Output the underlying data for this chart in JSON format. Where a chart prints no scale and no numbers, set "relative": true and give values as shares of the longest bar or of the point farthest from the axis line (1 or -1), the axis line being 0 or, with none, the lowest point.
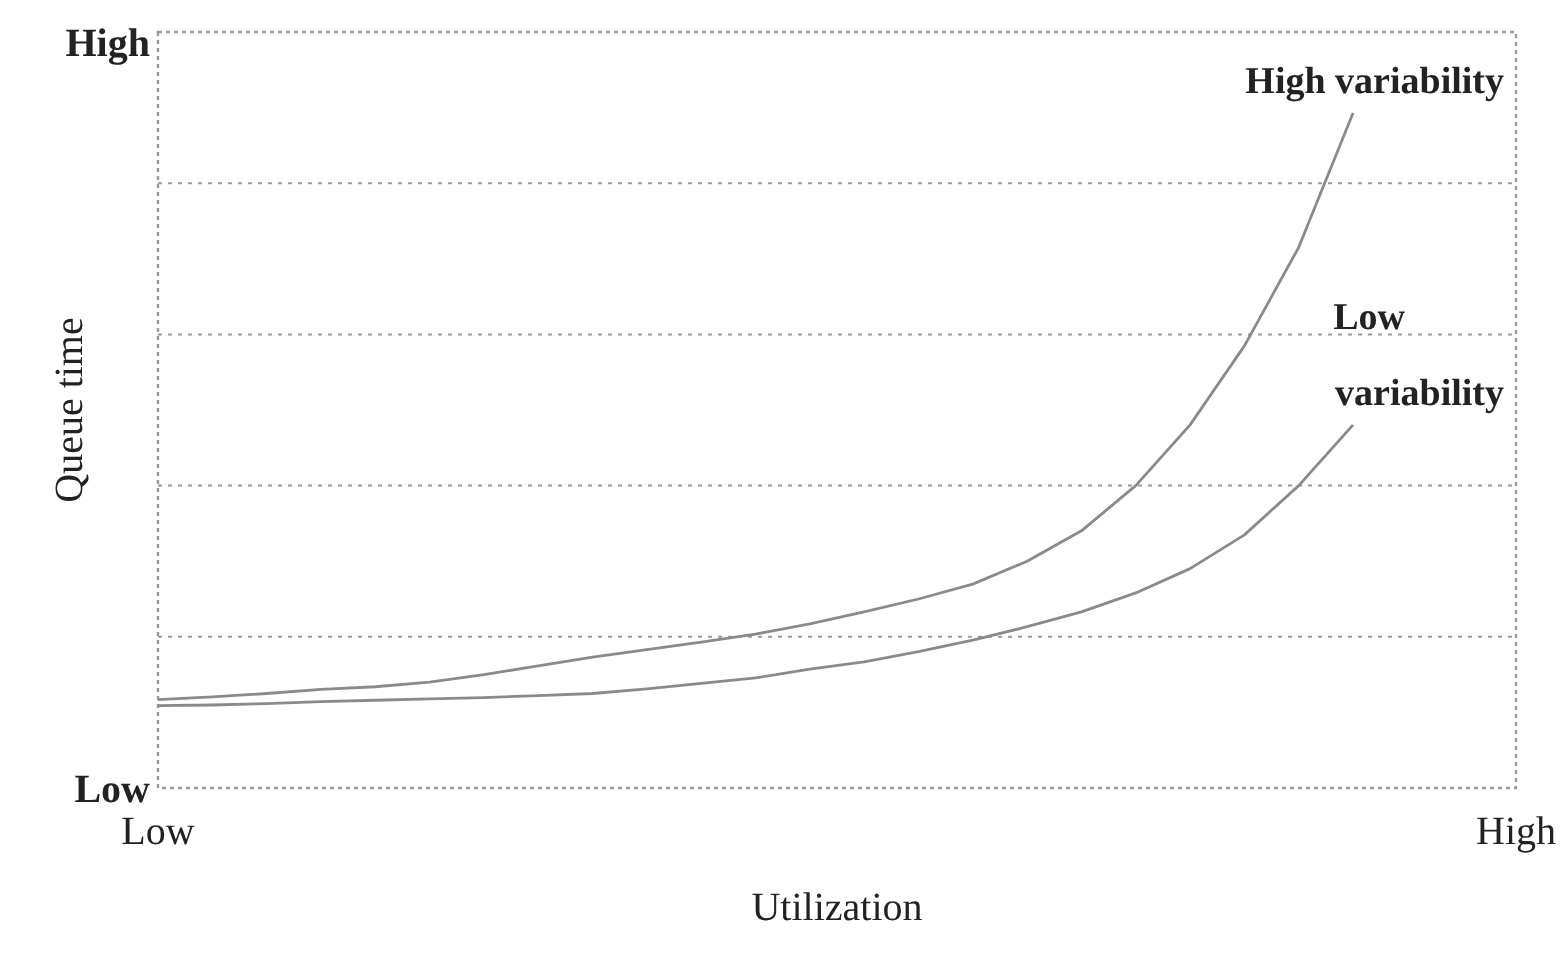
{
  "chart_data": {
    "type": "line",
    "relative": true,
    "xlabel": "Utilization",
    "ylabel": "Queue time",
    "annotations": [
      "Low",
      "High"
    ],
    "categories": [
      "Low",
      null,
      null,
      null,
      null,
      null,
      null,
      null,
      null,
      null,
      null,
      null,
      null,
      null,
      null,
      null,
      null,
      null,
      null,
      null,
      null,
      null,
      null,
      null,
      null,
      "High"
    ],
    "grid": "y",
    "marker": "none",
    "line_style": "solid",
    "series": [
      {
        "name": "High variability",
        "color": "#8a8a8a",
        "values": [
          0.131,
          0.135,
          0.14,
          0.146,
          0.15,
          0.157,
          0.168,
          0.181,
          0.194,
          0.205,
          0.216,
          0.228,
          0.243,
          0.261,
          0.28,
          0.302,
          0.336,
          0.381,
          0.448,
          0.538,
          0.655,
          0.801,
          1,
          null,
          null,
          null
        ]
      },
      {
        "name": "Low variability",
        "color": "#8a8a8a",
        "values": [
          0.122,
          0.123,
          0.125,
          0.128,
          0.13,
          0.132,
          0.134,
          0.137,
          0.14,
          0.147,
          0.155,
          0.163,
          0.176,
          0.187,
          0.202,
          0.219,
          0.239,
          0.261,
          0.289,
          0.325,
          0.375,
          0.448,
          0.538,
          null,
          null,
          null
        ]
      }
    ]
  }
}
